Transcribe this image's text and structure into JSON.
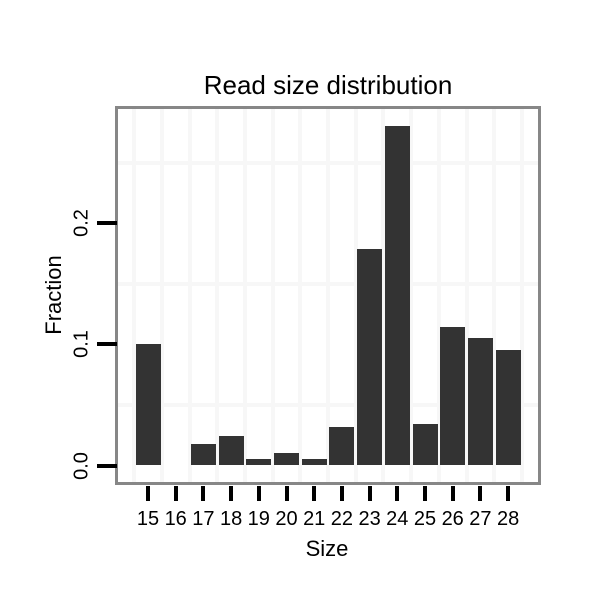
{
  "chart_data": {
    "type": "bar",
    "title": "Read size distribution",
    "xlabel": "Size",
    "ylabel": "Fraction",
    "categories": [
      15,
      16,
      17,
      18,
      19,
      20,
      21,
      22,
      23,
      24,
      25,
      26,
      27,
      28
    ],
    "values": [
      0.1,
      0.0,
      0.018,
      0.024,
      0.005,
      0.01,
      0.005,
      0.032,
      0.179,
      0.28,
      0.034,
      0.114,
      0.105,
      0.095
    ],
    "x_tick_labels": [
      "15",
      "16",
      "17",
      "18",
      "19",
      "20",
      "21",
      "22",
      "23",
      "24",
      "25",
      "26",
      "27",
      "28"
    ],
    "y_tick_labels": [
      "0.0",
      "0.1",
      "0.2"
    ],
    "y_tick_values": [
      0.0,
      0.1,
      0.2
    ],
    "ylim": [
      -0.014,
      0.294
    ],
    "xlim": [
      13.9,
      29.1
    ],
    "legend": "none",
    "grid": "minor-only",
    "minor_grid_x": [
      14.5,
      15.5,
      16.5,
      17.5,
      18.5,
      19.5,
      20.5,
      21.5,
      22.5,
      23.5,
      24.5,
      25.5,
      26.5,
      27.5,
      28.5
    ],
    "minor_grid_y": [
      0.05,
      0.15,
      0.25
    ],
    "bar_color": "#333333",
    "grid_color": "#f7f7f7",
    "panel_border_color": "#878787",
    "tick_color": "#000000",
    "text_color": "#000000",
    "background_color": "#ffffff"
  }
}
